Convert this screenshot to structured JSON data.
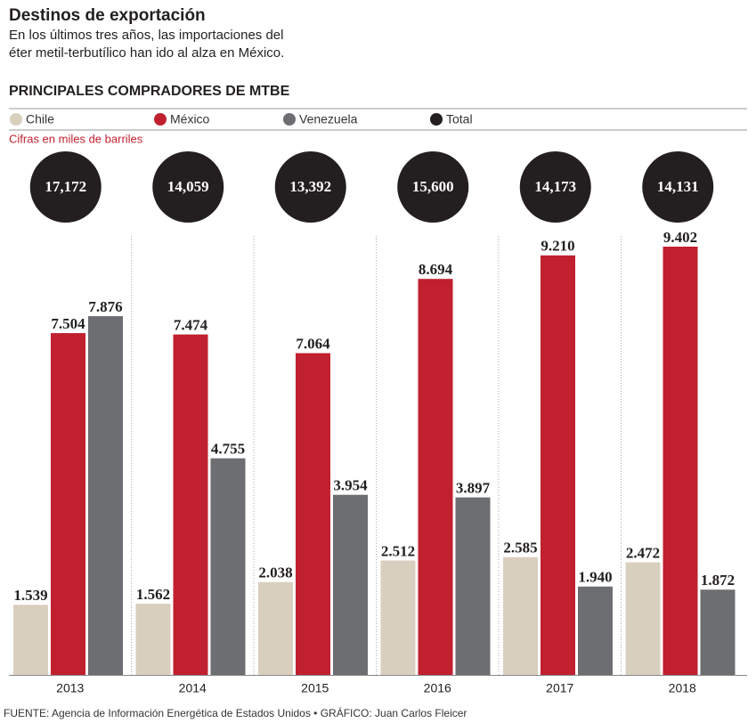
{
  "chart_data": {
    "type": "bar",
    "title": "Destinos de exportación",
    "subtitle": [
      "En los últimos tres años, las importaciones del",
      "éter metil-terbutílico han ido al alza en México."
    ],
    "chart_title": "PRINCIPALES COMPRADORES DE MTBE",
    "note": "Cifras en miles de barriles",
    "source": "FUENTE: Agencia de Información Energética de Estados Unidos • GRÁFICO: Juan Carlos Fleicer",
    "categories": [
      "2013",
      "2014",
      "2015",
      "2016",
      "2017",
      "2018"
    ],
    "series": [
      {
        "name": "Chile",
        "color": "#d9cfbf",
        "values": [
          1539,
          1562,
          2038,
          2512,
          2585,
          2472
        ],
        "value_labels": [
          "1.539",
          "1.562",
          "2.038",
          "2.512",
          "2.585",
          "2.472"
        ]
      },
      {
        "name": "México",
        "color": "#c0202f",
        "values": [
          7504,
          7474,
          7064,
          8694,
          9210,
          9402
        ],
        "value_labels": [
          "7.504",
          "7.474",
          "7.064",
          "8.694",
          "9.210",
          "9.402"
        ]
      },
      {
        "name": "Venezuela",
        "color": "#6d6e71",
        "values": [
          7876,
          4755,
          3954,
          3897,
          1940,
          1872
        ],
        "value_labels": [
          "7.876",
          "4.755",
          "3.954",
          "3.897",
          "1.940",
          "1.872"
        ]
      }
    ],
    "totals": {
      "name": "Total",
      "color": "#231f20",
      "values": [
        17172,
        14059,
        13392,
        15600,
        14173,
        14131
      ],
      "value_labels": [
        "17,172",
        "14,059",
        "13,392",
        "15,600",
        "14,173",
        "14,131"
      ]
    }
  }
}
